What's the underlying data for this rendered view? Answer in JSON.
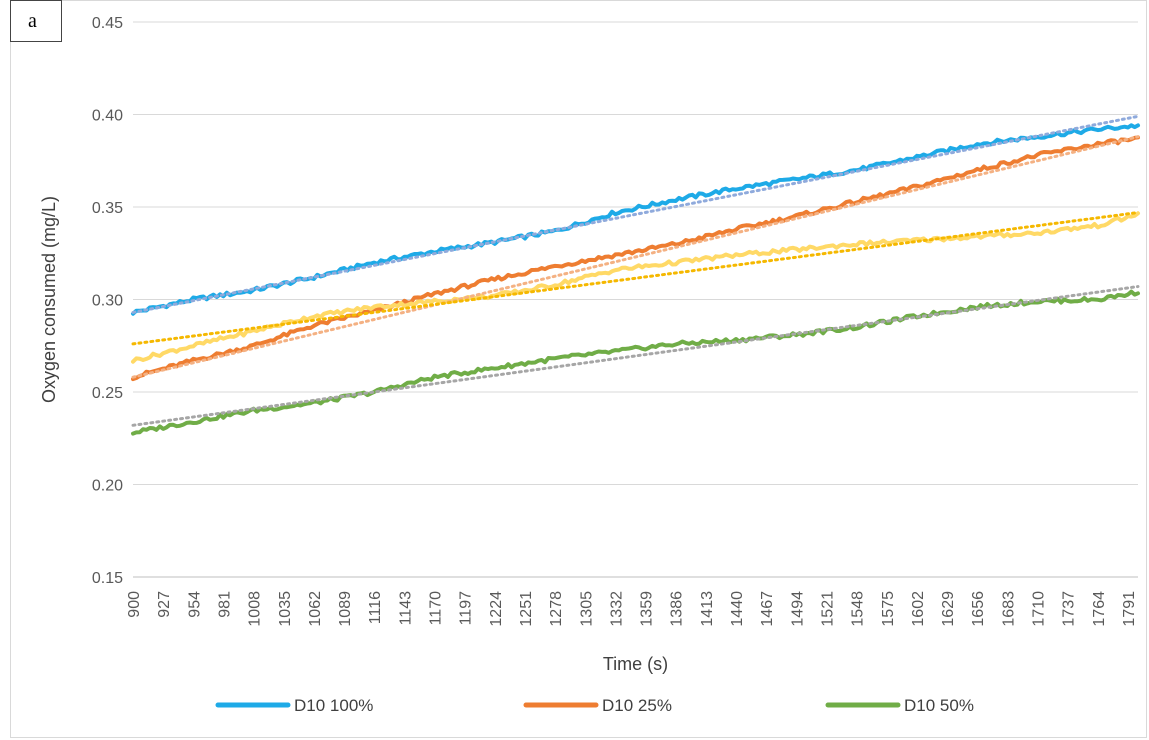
{
  "panel_label": "a",
  "chart_data": {
    "type": "line",
    "title": "",
    "xlabel": "Time (s)",
    "ylabel": "Oxygen consumed (mg/L)",
    "xlim": [
      900,
      1800
    ],
    "ylim": [
      0.15,
      0.45
    ],
    "y_ticks": [
      "0.15",
      "0.20",
      "0.25",
      "0.30",
      "0.35",
      "0.40",
      "0.45"
    ],
    "x_ticks": [
      "900",
      "927",
      "954",
      "981",
      "1008",
      "1035",
      "1062",
      "1089",
      "1116",
      "1143",
      "1170",
      "1197",
      "1224",
      "1251",
      "1278",
      "1305",
      "1332",
      "1359",
      "1386",
      "1413",
      "1440",
      "1467",
      "1494",
      "1521",
      "1548",
      "1575",
      "1602",
      "1629",
      "1656",
      "1683",
      "1710",
      "1737",
      "1764",
      "1791"
    ],
    "grid": "horizontal",
    "legend_position": "bottom",
    "series": [
      {
        "name": "D10 100%",
        "color": "#1EAAE7",
        "in_legend": true,
        "x": [
          900,
          954,
          1008,
          1062,
          1116,
          1170,
          1224,
          1278,
          1332,
          1386,
          1440,
          1494,
          1548,
          1602,
          1656,
          1710,
          1764,
          1800
        ],
        "values": [
          0.293,
          0.3,
          0.305,
          0.312,
          0.32,
          0.326,
          0.331,
          0.337,
          0.347,
          0.354,
          0.36,
          0.365,
          0.37,
          0.377,
          0.384,
          0.388,
          0.392,
          0.394
        ]
      },
      {
        "name": "D10 25%",
        "color": "#EE7D31",
        "in_legend": true,
        "x": [
          900,
          954,
          1008,
          1062,
          1116,
          1170,
          1224,
          1278,
          1332,
          1386,
          1440,
          1494,
          1548,
          1602,
          1656,
          1710,
          1764,
          1800
        ],
        "values": [
          0.258,
          0.267,
          0.275,
          0.286,
          0.294,
          0.303,
          0.311,
          0.318,
          0.324,
          0.33,
          0.338,
          0.345,
          0.353,
          0.361,
          0.37,
          0.378,
          0.384,
          0.387
        ]
      },
      {
        "name": "D10 50%",
        "color": "#70AD47",
        "in_legend": true,
        "x": [
          900,
          954,
          1008,
          1062,
          1116,
          1170,
          1224,
          1278,
          1332,
          1386,
          1440,
          1494,
          1548,
          1602,
          1656,
          1710,
          1764,
          1800
        ],
        "values": [
          0.228,
          0.234,
          0.24,
          0.244,
          0.25,
          0.258,
          0.263,
          0.268,
          0.272,
          0.276,
          0.278,
          0.281,
          0.285,
          0.291,
          0.296,
          0.299,
          0.3,
          0.304
        ]
      },
      {
        "name": "",
        "color": "#FFD966",
        "in_legend": false,
        "x": [
          900,
          954,
          1008,
          1062,
          1116,
          1170,
          1224,
          1278,
          1332,
          1386,
          1440,
          1494,
          1548,
          1602,
          1656,
          1710,
          1764,
          1800
        ],
        "values": [
          0.267,
          0.275,
          0.283,
          0.291,
          0.296,
          0.299,
          0.302,
          0.308,
          0.316,
          0.32,
          0.324,
          0.327,
          0.33,
          0.332,
          0.334,
          0.336,
          0.34,
          0.346
        ]
      }
    ],
    "trendlines": [
      {
        "color": "#8FAADC",
        "start": [
          900,
          0.293
        ],
        "end": [
          1800,
          0.399
        ]
      },
      {
        "color": "#F4B183",
        "start": [
          900,
          0.258
        ],
        "end": [
          1800,
          0.388
        ]
      },
      {
        "color": "#F5B800",
        "start": [
          900,
          0.276
        ],
        "end": [
          1800,
          0.347
        ]
      },
      {
        "color": "#A6A6A6",
        "start": [
          900,
          0.232
        ],
        "end": [
          1800,
          0.307
        ]
      }
    ]
  }
}
